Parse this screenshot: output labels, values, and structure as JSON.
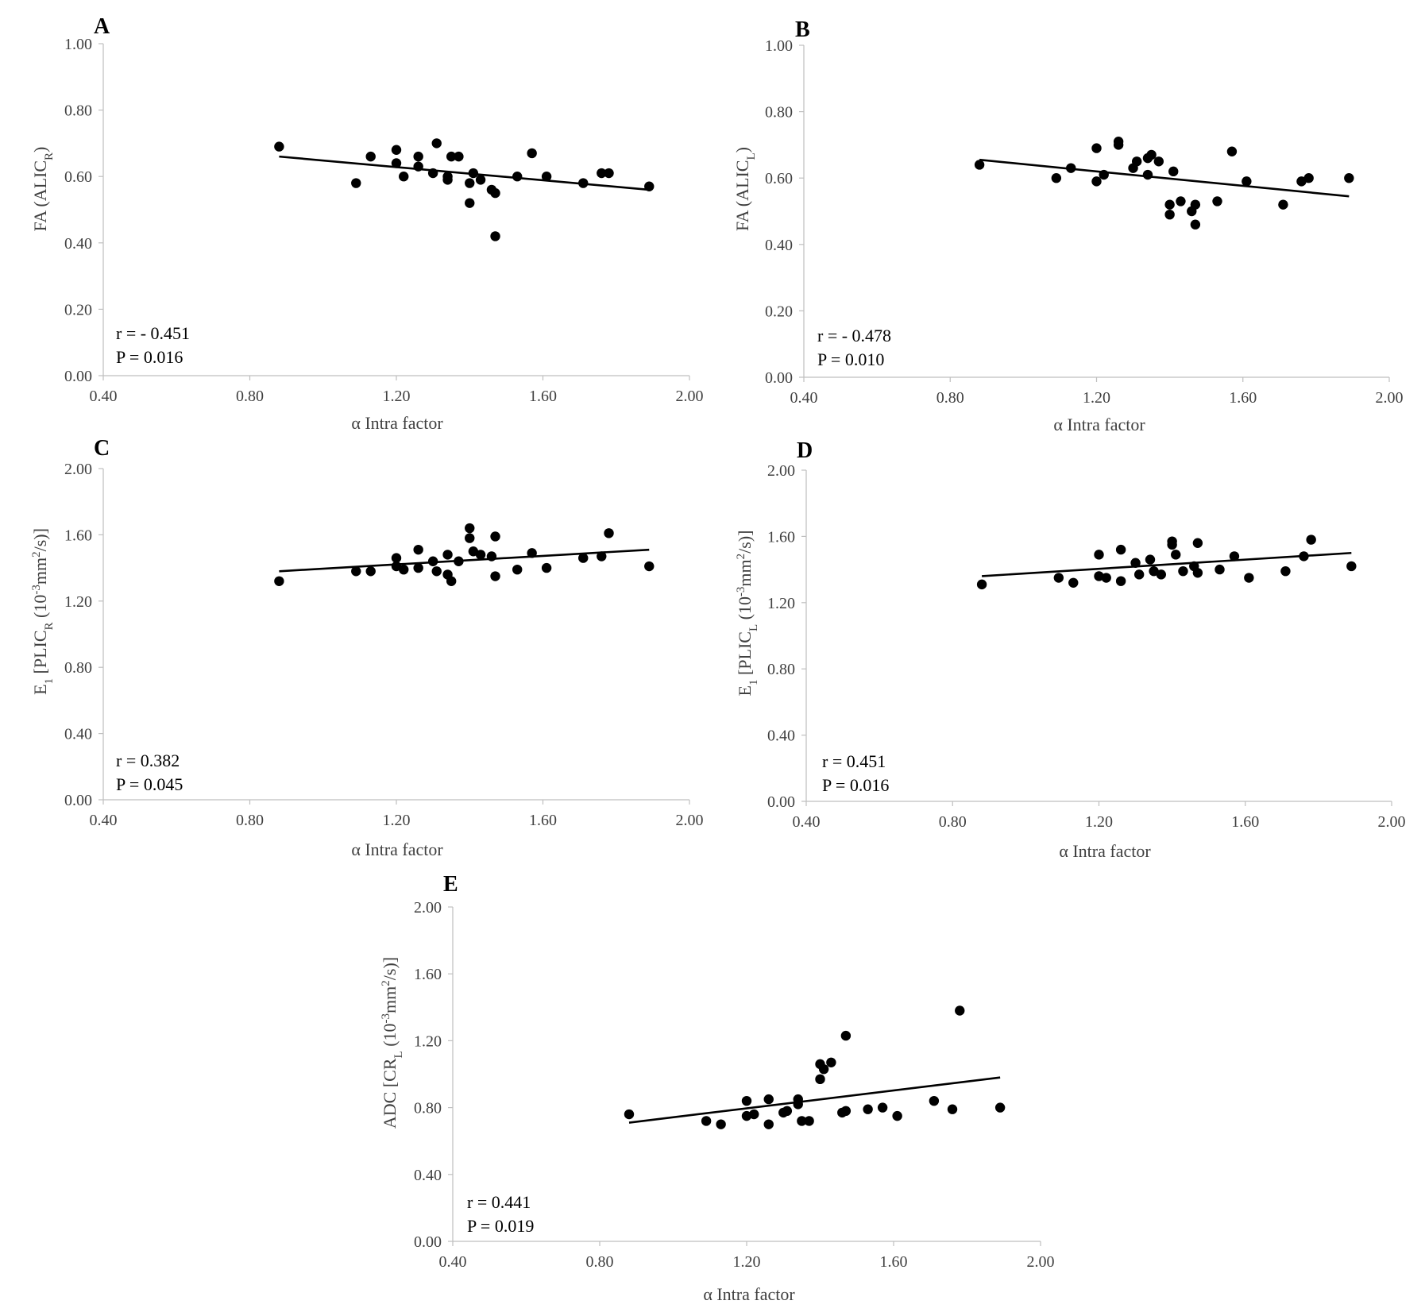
{
  "chart_data": [
    {
      "type": "scatter",
      "panel": "A",
      "xlabel": "α Intra factor",
      "ylabel": {
        "main": "FA (ALIC",
        "sub": "R",
        "tail": ")"
      },
      "xlim": [
        0.4,
        2.0
      ],
      "ylim": [
        0.0,
        1.0
      ],
      "xticks": [
        "0.40",
        "0.80",
        "1.20",
        "1.60",
        "2.00"
      ],
      "yticks": [
        "0.00",
        "0.20",
        "0.40",
        "0.60",
        "0.80",
        "1.00"
      ],
      "stat_r": "r = - 0.451",
      "stat_p": "P = 0.016",
      "fit": {
        "x": [
          0.88,
          1.89
        ],
        "y": [
          0.66,
          0.56
        ]
      },
      "points": [
        {
          "x": 0.88,
          "y": 0.69
        },
        {
          "x": 1.09,
          "y": 0.58
        },
        {
          "x": 1.13,
          "y": 0.66
        },
        {
          "x": 1.2,
          "y": 0.68
        },
        {
          "x": 1.2,
          "y": 0.64
        },
        {
          "x": 1.22,
          "y": 0.6
        },
        {
          "x": 1.26,
          "y": 0.66
        },
        {
          "x": 1.26,
          "y": 0.63
        },
        {
          "x": 1.3,
          "y": 0.61
        },
        {
          "x": 1.31,
          "y": 0.7
        },
        {
          "x": 1.34,
          "y": 0.59
        },
        {
          "x": 1.34,
          "y": 0.6
        },
        {
          "x": 1.35,
          "y": 0.66
        },
        {
          "x": 1.37,
          "y": 0.66
        },
        {
          "x": 1.4,
          "y": 0.52
        },
        {
          "x": 1.4,
          "y": 0.58
        },
        {
          "x": 1.41,
          "y": 0.61
        },
        {
          "x": 1.43,
          "y": 0.59
        },
        {
          "x": 1.46,
          "y": 0.56
        },
        {
          "x": 1.47,
          "y": 0.55
        },
        {
          "x": 1.47,
          "y": 0.42
        },
        {
          "x": 1.53,
          "y": 0.6
        },
        {
          "x": 1.57,
          "y": 0.67
        },
        {
          "x": 1.61,
          "y": 0.6
        },
        {
          "x": 1.71,
          "y": 0.58
        },
        {
          "x": 1.76,
          "y": 0.61
        },
        {
          "x": 1.78,
          "y": 0.61
        },
        {
          "x": 1.89,
          "y": 0.57
        }
      ]
    },
    {
      "type": "scatter",
      "panel": "B",
      "xlabel": "α Intra factor",
      "ylabel": {
        "main": "FA (ALIC",
        "sub": "L",
        "tail": ")"
      },
      "xlim": [
        0.4,
        2.0
      ],
      "ylim": [
        0.0,
        1.0
      ],
      "xticks": [
        "0.40",
        "0.80",
        "1.20",
        "1.60",
        "2.00"
      ],
      "yticks": [
        "0.00",
        "0.20",
        "0.40",
        "0.60",
        "0.80",
        "1.00"
      ],
      "stat_r": "r = - 0.478",
      "stat_p": "P = 0.010",
      "fit": {
        "x": [
          0.88,
          1.89
        ],
        "y": [
          0.655,
          0.545
        ]
      },
      "points": [
        {
          "x": 0.88,
          "y": 0.64
        },
        {
          "x": 1.09,
          "y": 0.6
        },
        {
          "x": 1.13,
          "y": 0.63
        },
        {
          "x": 1.2,
          "y": 0.69
        },
        {
          "x": 1.2,
          "y": 0.59
        },
        {
          "x": 1.22,
          "y": 0.61
        },
        {
          "x": 1.26,
          "y": 0.71
        },
        {
          "x": 1.26,
          "y": 0.7
        },
        {
          "x": 1.3,
          "y": 0.63
        },
        {
          "x": 1.31,
          "y": 0.65
        },
        {
          "x": 1.34,
          "y": 0.66
        },
        {
          "x": 1.34,
          "y": 0.61
        },
        {
          "x": 1.35,
          "y": 0.67
        },
        {
          "x": 1.37,
          "y": 0.65
        },
        {
          "x": 1.4,
          "y": 0.52
        },
        {
          "x": 1.4,
          "y": 0.49
        },
        {
          "x": 1.41,
          "y": 0.62
        },
        {
          "x": 1.43,
          "y": 0.53
        },
        {
          "x": 1.46,
          "y": 0.5
        },
        {
          "x": 1.47,
          "y": 0.52
        },
        {
          "x": 1.47,
          "y": 0.46
        },
        {
          "x": 1.53,
          "y": 0.53
        },
        {
          "x": 1.57,
          "y": 0.68
        },
        {
          "x": 1.61,
          "y": 0.59
        },
        {
          "x": 1.71,
          "y": 0.52
        },
        {
          "x": 1.76,
          "y": 0.59
        },
        {
          "x": 1.78,
          "y": 0.6
        },
        {
          "x": 1.89,
          "y": 0.6
        }
      ]
    },
    {
      "type": "scatter",
      "panel": "C",
      "xlabel": "α Intra factor",
      "ylabel": {
        "main": "E",
        "sub": "1",
        "mid": " [PLIC",
        "sub2": "R",
        "tail": " (10",
        "sup": "-3",
        "tail2": "mm",
        "sup2": "2",
        "tail3": "/s)]"
      },
      "xlim": [
        0.4,
        2.0
      ],
      "ylim": [
        0.0,
        2.0
      ],
      "xticks": [
        "0.40",
        "0.80",
        "1.20",
        "1.60",
        "2.00"
      ],
      "yticks": [
        "0.00",
        "0.40",
        "0.80",
        "1.20",
        "1.60",
        "2.00"
      ],
      "stat_r": "r  = 0.382",
      "stat_p": "P = 0.045",
      "fit": {
        "x": [
          0.88,
          1.89
        ],
        "y": [
          1.38,
          1.51
        ]
      },
      "points": [
        {
          "x": 0.88,
          "y": 1.32
        },
        {
          "x": 1.09,
          "y": 1.38
        },
        {
          "x": 1.13,
          "y": 1.38
        },
        {
          "x": 1.2,
          "y": 1.46
        },
        {
          "x": 1.2,
          "y": 1.41
        },
        {
          "x": 1.22,
          "y": 1.39
        },
        {
          "x": 1.26,
          "y": 1.51
        },
        {
          "x": 1.26,
          "y": 1.4
        },
        {
          "x": 1.3,
          "y": 1.44
        },
        {
          "x": 1.31,
          "y": 1.38
        },
        {
          "x": 1.34,
          "y": 1.36
        },
        {
          "x": 1.34,
          "y": 1.48
        },
        {
          "x": 1.35,
          "y": 1.32
        },
        {
          "x": 1.37,
          "y": 1.44
        },
        {
          "x": 1.4,
          "y": 1.64
        },
        {
          "x": 1.4,
          "y": 1.58
        },
        {
          "x": 1.41,
          "y": 1.5
        },
        {
          "x": 1.43,
          "y": 1.48
        },
        {
          "x": 1.46,
          "y": 1.47
        },
        {
          "x": 1.47,
          "y": 1.59
        },
        {
          "x": 1.47,
          "y": 1.35
        },
        {
          "x": 1.53,
          "y": 1.39
        },
        {
          "x": 1.57,
          "y": 1.49
        },
        {
          "x": 1.61,
          "y": 1.4
        },
        {
          "x": 1.71,
          "y": 1.46
        },
        {
          "x": 1.76,
          "y": 1.47
        },
        {
          "x": 1.78,
          "y": 1.61
        },
        {
          "x": 1.89,
          "y": 1.41
        }
      ]
    },
    {
      "type": "scatter",
      "panel": "D",
      "xlabel": "α Intra factor",
      "ylabel": {
        "main": "E",
        "sub": "1",
        "mid": " [PLIC",
        "sub2": "L",
        "tail": " (10",
        "sup": "-3",
        "tail2": "mm",
        "sup2": "2",
        "tail3": "/s)]"
      },
      "xlim": [
        0.4,
        2.0
      ],
      "ylim": [
        0.0,
        2.0
      ],
      "xticks": [
        "0.40",
        "0.80",
        "1.20",
        "1.60",
        "2.00"
      ],
      "yticks": [
        "0.00",
        "0.40",
        "0.80",
        "1.20",
        "1.60",
        "2.00"
      ],
      "stat_r": "r  = 0.451",
      "stat_p": "P = 0.016",
      "fit": {
        "x": [
          0.88,
          1.89
        ],
        "y": [
          1.36,
          1.5
        ]
      },
      "points": [
        {
          "x": 0.88,
          "y": 1.31
        },
        {
          "x": 1.09,
          "y": 1.35
        },
        {
          "x": 1.13,
          "y": 1.32
        },
        {
          "x": 1.2,
          "y": 1.49
        },
        {
          "x": 1.2,
          "y": 1.36
        },
        {
          "x": 1.22,
          "y": 1.35
        },
        {
          "x": 1.26,
          "y": 1.52
        },
        {
          "x": 1.26,
          "y": 1.33
        },
        {
          "x": 1.3,
          "y": 1.44
        },
        {
          "x": 1.31,
          "y": 1.37
        },
        {
          "x": 1.34,
          "y": 1.46
        },
        {
          "x": 1.35,
          "y": 1.39
        },
        {
          "x": 1.37,
          "y": 1.37
        },
        {
          "x": 1.4,
          "y": 1.57
        },
        {
          "x": 1.4,
          "y": 1.55
        },
        {
          "x": 1.41,
          "y": 1.49
        },
        {
          "x": 1.43,
          "y": 1.39
        },
        {
          "x": 1.46,
          "y": 1.42
        },
        {
          "x": 1.47,
          "y": 1.56
        },
        {
          "x": 1.47,
          "y": 1.38
        },
        {
          "x": 1.53,
          "y": 1.4
        },
        {
          "x": 1.57,
          "y": 1.48
        },
        {
          "x": 1.61,
          "y": 1.35
        },
        {
          "x": 1.71,
          "y": 1.39
        },
        {
          "x": 1.76,
          "y": 1.48
        },
        {
          "x": 1.78,
          "y": 1.58
        },
        {
          "x": 1.89,
          "y": 1.42
        }
      ]
    },
    {
      "type": "scatter",
      "panel": "E",
      "xlabel": "α Intra factor",
      "ylabel": {
        "main": "ADC [CR",
        "sub": "L",
        "tail": " (10",
        "sup": "-3",
        "tail2": "mm",
        "sup2": "2",
        "tail3": "/s)]"
      },
      "xlim": [
        0.4,
        2.0
      ],
      "ylim": [
        0.0,
        2.0
      ],
      "xticks": [
        "0.40",
        "0.80",
        "1.20",
        "1.60",
        "2.00"
      ],
      "yticks": [
        "0.00",
        "0.40",
        "0.80",
        "1.20",
        "1.60",
        "2.00"
      ],
      "stat_r": "r  = 0.441",
      "stat_p": "P = 0.019",
      "fit": {
        "x": [
          0.88,
          1.89
        ],
        "y": [
          0.71,
          0.98
        ]
      },
      "points": [
        {
          "x": 0.88,
          "y": 0.76
        },
        {
          "x": 1.09,
          "y": 0.72
        },
        {
          "x": 1.13,
          "y": 0.7
        },
        {
          "x": 1.2,
          "y": 0.84
        },
        {
          "x": 1.2,
          "y": 0.75
        },
        {
          "x": 1.22,
          "y": 0.76
        },
        {
          "x": 1.26,
          "y": 0.85
        },
        {
          "x": 1.26,
          "y": 0.7
        },
        {
          "x": 1.3,
          "y": 0.77
        },
        {
          "x": 1.31,
          "y": 0.78
        },
        {
          "x": 1.34,
          "y": 0.85
        },
        {
          "x": 1.34,
          "y": 0.82
        },
        {
          "x": 1.35,
          "y": 0.72
        },
        {
          "x": 1.37,
          "y": 0.72
        },
        {
          "x": 1.4,
          "y": 1.06
        },
        {
          "x": 1.4,
          "y": 0.97
        },
        {
          "x": 1.41,
          "y": 1.03
        },
        {
          "x": 1.43,
          "y": 1.07
        },
        {
          "x": 1.46,
          "y": 0.77
        },
        {
          "x": 1.47,
          "y": 1.23
        },
        {
          "x": 1.47,
          "y": 0.78
        },
        {
          "x": 1.53,
          "y": 0.79
        },
        {
          "x": 1.57,
          "y": 0.8
        },
        {
          "x": 1.61,
          "y": 0.75
        },
        {
          "x": 1.71,
          "y": 0.84
        },
        {
          "x": 1.76,
          "y": 0.79
        },
        {
          "x": 1.78,
          "y": 1.38
        },
        {
          "x": 1.89,
          "y": 0.8
        }
      ]
    }
  ]
}
